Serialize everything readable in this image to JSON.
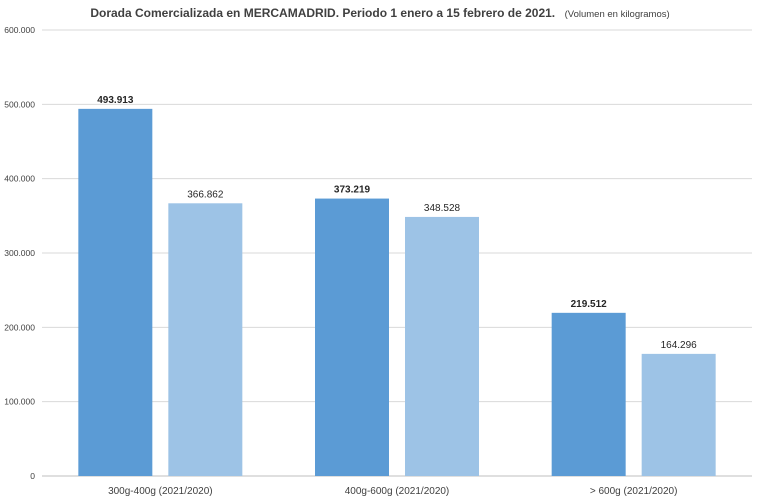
{
  "chart_data": {
    "type": "bar",
    "title": "Dorada Comercializada en MERCAMADRID. Periodo 1 enero a 15 febrero de 2021.",
    "subtitle": "(Volumen en kilogramos)",
    "categories": [
      "300g-400g (2021/2020)",
      "400g-600g (2021/2020)",
      "> 600g (2021/2020)"
    ],
    "series": [
      {
        "values": [
          493913,
          373219,
          219512
        ],
        "labels": [
          "493.913",
          "373.219",
          "219.512"
        ],
        "color": "#5B9BD5",
        "label_bold": true
      },
      {
        "values": [
          366862,
          348528,
          164296
        ],
        "labels": [
          "366.862",
          "348.528",
          "164.296"
        ],
        "color": "#9DC3E6",
        "label_bold": false
      }
    ],
    "ylim": [
      0,
      600000
    ],
    "yticks": [
      0,
      100000,
      200000,
      300000,
      400000,
      500000,
      600000
    ],
    "ytick_labels": [
      "0",
      "100.000",
      "200.000",
      "300.000",
      "400.000",
      "500.000",
      "600.000"
    ],
    "grid": true,
    "gridline_color": "#D9D9D9"
  }
}
